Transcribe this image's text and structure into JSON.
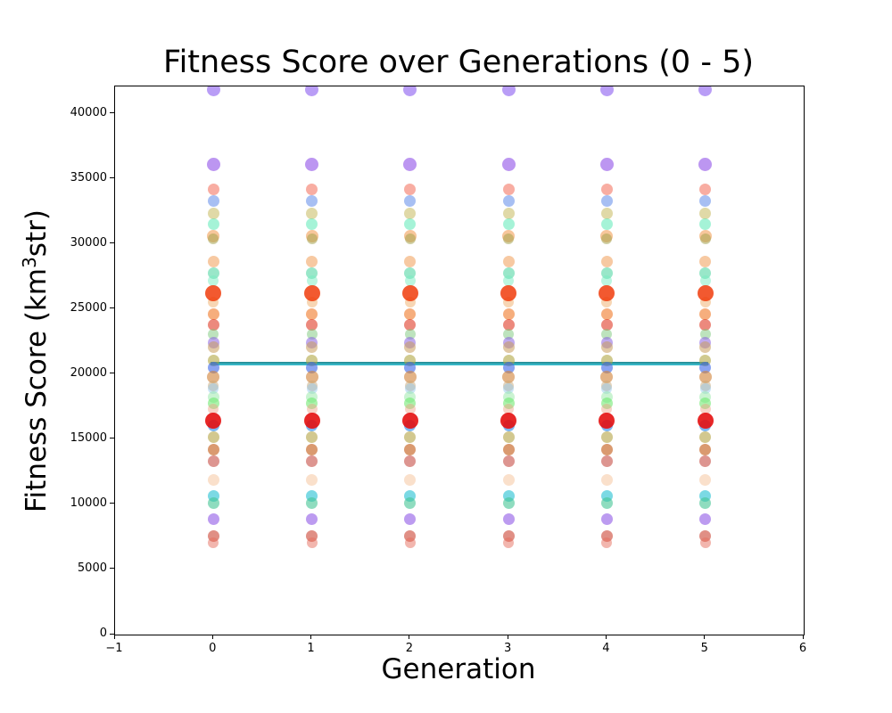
{
  "figure": {
    "title": "Fitness Score over Generations (0 - 5)",
    "xlabel": "Generation",
    "ylabel_prefix": "Fitness Score (km",
    "ylabel_sup": "3",
    "ylabel_suffix": "str)",
    "background_color": "#ffffff",
    "spine_color": "#000000"
  },
  "chart_data": {
    "type": "scatter",
    "title": "Fitness Score over Generations (0 - 5)",
    "xlabel": "Generation",
    "ylabel": "Fitness Score (km³str)",
    "xlim": [
      -1,
      6
    ],
    "ylim": [
      0,
      42120
    ],
    "x_ticks": [
      -1,
      0,
      1,
      2,
      3,
      4,
      5,
      6
    ],
    "x_tick_labels": [
      "−1",
      "0",
      "1",
      "2",
      "3",
      "4",
      "5",
      "6"
    ],
    "y_ticks": [
      0,
      5000,
      10000,
      15000,
      20000,
      25000,
      30000,
      35000,
      40000
    ],
    "y_tick_labels": [
      "0",
      "5000",
      "10000",
      "15000",
      "20000",
      "25000",
      "30000",
      "35000",
      "40000"
    ],
    "grid": false,
    "legend": null,
    "generations": [
      0,
      1,
      2,
      3,
      4,
      5
    ],
    "note": "Each generation column repeats the same set of fitness values/colors",
    "points_per_generation": [
      {
        "value": 41850,
        "color": "#8b5cf0",
        "d": 15,
        "o": 0.6
      },
      {
        "value": 36160,
        "color": "#9050e8",
        "d": 15,
        "o": 0.6
      },
      {
        "value": 34180,
        "color": "#f26a56",
        "d": 13,
        "o": 0.55
      },
      {
        "value": 33290,
        "color": "#4f7fe8",
        "d": 13,
        "o": 0.5
      },
      {
        "value": 32390,
        "color": "#c6b95e",
        "d": 13,
        "o": 0.55
      },
      {
        "value": 31570,
        "color": "#4ce8b0",
        "d": 13,
        "o": 0.5
      },
      {
        "value": 30610,
        "color": "#f09848",
        "d": 14,
        "o": 0.55
      },
      {
        "value": 30380,
        "color": "#a0a048",
        "d": 12,
        "o": 0.5
      },
      {
        "value": 28630,
        "color": "#f09c55",
        "d": 13,
        "o": 0.55
      },
      {
        "value": 27740,
        "color": "#45d49c",
        "d": 13,
        "o": 0.55
      },
      {
        "value": 27190,
        "color": "#78eec2",
        "d": 12,
        "o": 0.5
      },
      {
        "value": 25550,
        "color": "#f0ae6a",
        "d": 12,
        "o": 0.5
      },
      {
        "value": 24590,
        "color": "#f07826",
        "d": 13,
        "o": 0.6
      },
      {
        "value": 23830,
        "color": "#e03a26",
        "d": 13,
        "o": 0.6
      },
      {
        "value": 23060,
        "color": "#7cc87c",
        "d": 12,
        "o": 0.5
      },
      {
        "value": 22460,
        "color": "#8a62e0",
        "d": 13,
        "o": 0.55
      },
      {
        "value": 22120,
        "color": "#c89c5c",
        "d": 13,
        "o": 0.55
      },
      {
        "value": 21090,
        "color": "#b0a645",
        "d": 13,
        "o": 0.6
      },
      {
        "value": 20480,
        "color": "#3a66e8",
        "d": 13,
        "o": 0.6
      },
      {
        "value": 19790,
        "color": "#d08036",
        "d": 14,
        "o": 0.6
      },
      {
        "value": 19100,
        "color": "#c8a878",
        "d": 12,
        "o": 0.5
      },
      {
        "value": 18900,
        "color": "#8cc4ea",
        "d": 12,
        "o": 0.45
      },
      {
        "value": 18220,
        "color": "#96e8a6",
        "d": 13,
        "o": 0.5
      },
      {
        "value": 17760,
        "color": "#66e866",
        "d": 13,
        "o": 0.55
      },
      {
        "value": 17330,
        "color": "#f0a086",
        "d": 12,
        "o": 0.45
      },
      {
        "value": 16030,
        "color": "#2486e8",
        "d": 13,
        "o": 0.6
      },
      {
        "value": 15200,
        "color": "#b4a444",
        "d": 13,
        "o": 0.6
      },
      {
        "value": 14240,
        "color": "#c66424",
        "d": 13,
        "o": 0.65
      },
      {
        "value": 13290,
        "color": "#c64e46",
        "d": 13,
        "o": 0.6
      },
      {
        "value": 11850,
        "color": "#f5c7a0",
        "d": 13,
        "o": 0.55
      },
      {
        "value": 10620,
        "color": "#34c4d6",
        "d": 13,
        "o": 0.65
      },
      {
        "value": 10070,
        "color": "#44c494",
        "d": 13,
        "o": 0.6
      },
      {
        "value": 8900,
        "color": "#9866e8",
        "d": 13,
        "o": 0.65
      },
      {
        "value": 7600,
        "color": "#cc4434",
        "d": 13,
        "o": 0.6
      },
      {
        "value": 7050,
        "color": "#e66e5e",
        "d": 12,
        "o": 0.5
      },
      {
        "value": 26230,
        "color": "#f03c0c",
        "d": 18,
        "o": 0.85
      },
      {
        "value": 16440,
        "color": "#e41010",
        "d": 18,
        "o": 0.9
      }
    ],
    "hline": {
      "y": 20850,
      "x_start": 0,
      "x_end": 5,
      "color_top": "#23858d",
      "color_bottom": "#3fc6d8"
    }
  }
}
